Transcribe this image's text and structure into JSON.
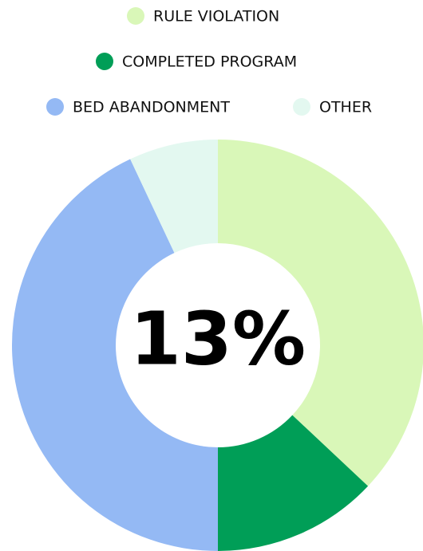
{
  "chart_data": {
    "type": "donut",
    "categories": [
      "RULE VIOLATION",
      "COMPLETED PROGRAM",
      "BED ABANDONMENT",
      "OTHER"
    ],
    "values": [
      37,
      13,
      43,
      7
    ],
    "colors": [
      "#d9f7b8",
      "#009e57",
      "#94b9f4",
      "#e3f8f0"
    ],
    "center_label": "13%"
  }
}
